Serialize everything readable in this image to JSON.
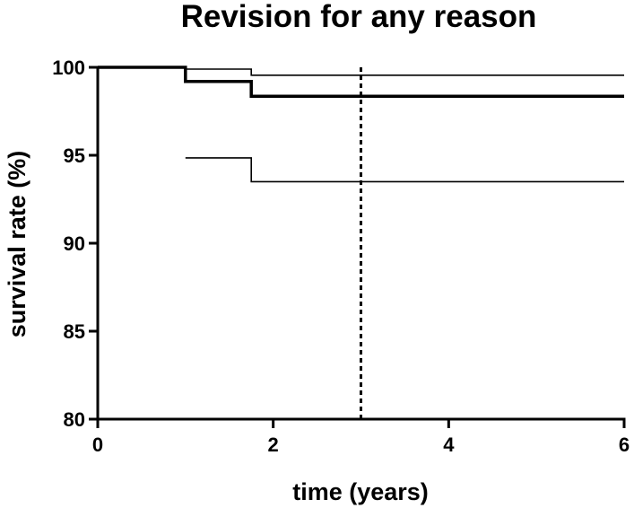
{
  "chart_data": {
    "type": "line",
    "title": "Revision for any reason",
    "xlabel": "time (years)",
    "ylabel": "survival rate (%)",
    "xlim": [
      0,
      6
    ],
    "ylim": [
      80,
      100
    ],
    "xticks": [
      0,
      2,
      4,
      6
    ],
    "yticks": [
      80,
      85,
      90,
      95,
      100
    ],
    "x_tick_labels": [
      "0",
      "2",
      "4",
      "6"
    ],
    "y_tick_labels": [
      "80",
      "85",
      "90",
      "95",
      "100"
    ],
    "grid": false,
    "legend": "none",
    "series": [
      {
        "role": "estimate",
        "style": "thick-step",
        "x": [
          0,
          1.0,
          1.0,
          1.75,
          1.75,
          6
        ],
        "y": [
          100,
          100,
          99.2,
          99.2,
          98.35,
          98.35
        ]
      },
      {
        "role": "upper-confidence-limit",
        "style": "thin-step",
        "x": [
          0,
          1.0,
          1.0,
          1.75,
          1.75,
          6
        ],
        "y": [
          100,
          100,
          99.9,
          99.9,
          99.55,
          99.55
        ]
      },
      {
        "role": "lower-confidence-limit",
        "style": "thin-step",
        "x": [
          1.0,
          1.75,
          1.75,
          6
        ],
        "y": [
          94.85,
          94.85,
          93.5,
          93.5
        ]
      }
    ],
    "reference_lines": [
      {
        "orientation": "vertical",
        "x": 3,
        "style": "dashed"
      }
    ]
  }
}
